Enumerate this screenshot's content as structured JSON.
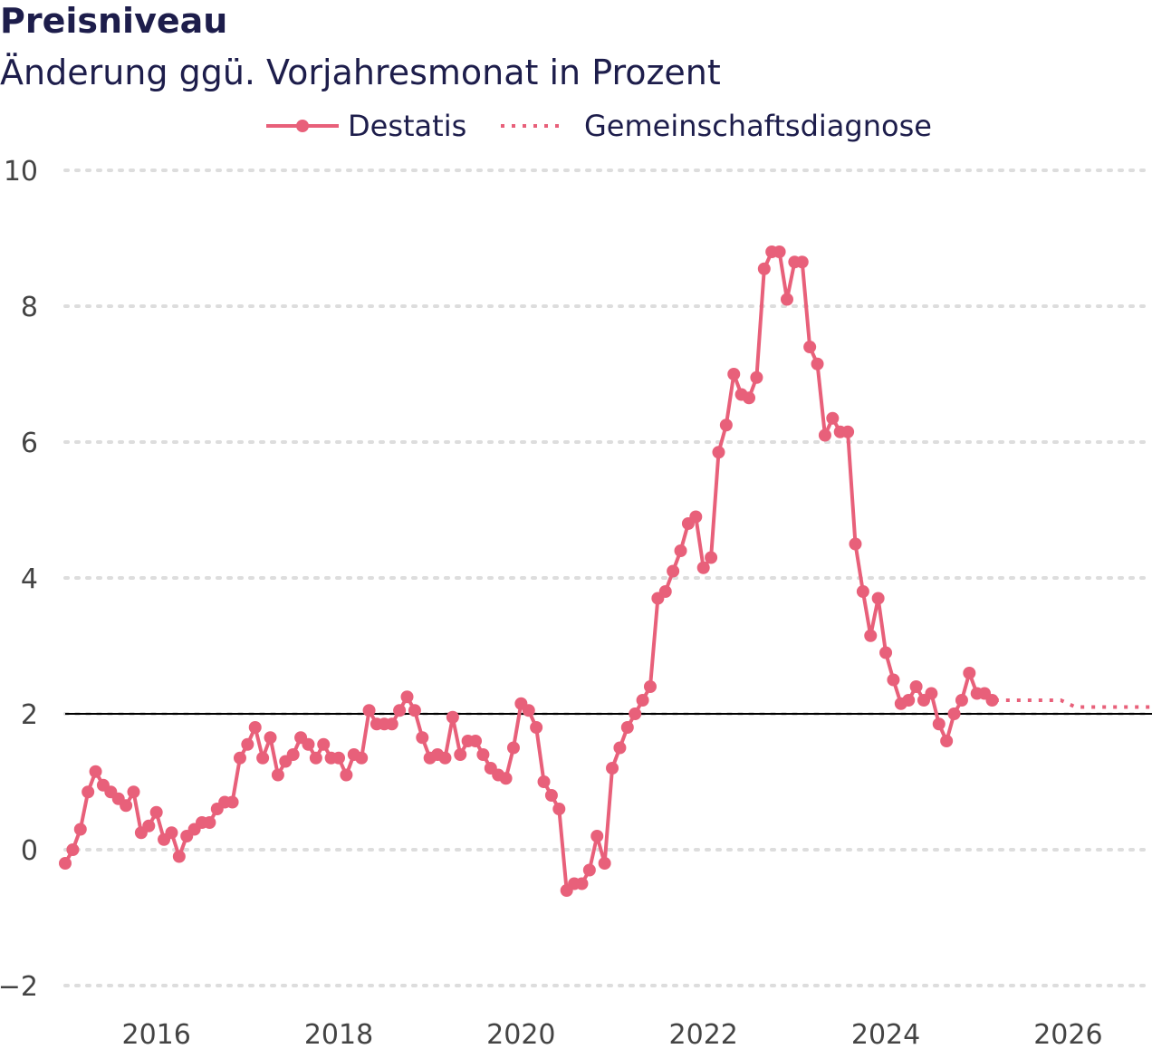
{
  "chart_data": {
    "type": "line",
    "title": "Preisniveau",
    "subtitle": "Änderung ggü. Vorjahresmonat in Prozent",
    "xlabel": "",
    "ylabel": "",
    "xlim": [
      2015.0,
      2026.92
    ],
    "ylim": [
      -2,
      10
    ],
    "y_ticks": [
      -2,
      0,
      2,
      4,
      6,
      8,
      10
    ],
    "y_tick_labels": [
      "−2",
      "0",
      "2",
      "4",
      "6",
      "8",
      "10"
    ],
    "x_ticks": [
      2016,
      2018,
      2020,
      2022,
      2024,
      2026
    ],
    "x_tick_labels": [
      "2016",
      "2018",
      "2020",
      "2022",
      "2024",
      "2026"
    ],
    "grid": "horizontal dotted",
    "reference_line": 2,
    "legend": {
      "position": "top",
      "entries": [
        "Destatis",
        "Gemeinschaftsdiagnose"
      ]
    },
    "colors": {
      "series": "#e8607a",
      "reference": "#000000",
      "grid": "#dddddd",
      "text": "#1d1d4b"
    },
    "series": [
      {
        "name": "Destatis",
        "style": "solid-markers",
        "start": "2015-01",
        "frequency": "monthly",
        "values": [
          -0.2,
          0,
          0.3,
          0.85,
          1.15,
          0.95,
          0.85,
          0.75,
          0.65,
          0.85,
          0.25,
          0.35,
          0.55,
          0.15,
          0.25,
          -0.1,
          0.2,
          0.3,
          0.4,
          0.4,
          0.6,
          0.7,
          0.7,
          1.35,
          1.55,
          1.8,
          1.35,
          1.65,
          1.1,
          1.3,
          1.4,
          1.65,
          1.55,
          1.35,
          1.55,
          1.35,
          1.35,
          1.1,
          1.4,
          1.35,
          2.05,
          1.85,
          1.85,
          1.85,
          2.05,
          2.25,
          2.05,
          1.65,
          1.35,
          1.4,
          1.35,
          1.95,
          1.4,
          1.6,
          1.6,
          1.4,
          1.2,
          1.1,
          1.05,
          1.5,
          2.15,
          2.05,
          1.8,
          1.0,
          0.8,
          0.6,
          -0.6,
          -0.5,
          -0.5,
          -0.3,
          0.2,
          -0.2,
          1.2,
          1.5,
          1.8,
          2.0,
          2.2,
          2.4,
          3.7,
          3.8,
          4.1,
          4.4,
          4.8,
          4.9,
          4.15,
          4.3,
          5.85,
          6.25,
          7.0,
          6.7,
          6.65,
          6.95,
          8.55,
          8.8,
          8.8,
          8.1,
          8.65,
          8.65,
          7.4,
          7.15,
          6.1,
          6.35,
          6.15,
          6.15,
          4.5,
          3.8,
          3.15,
          3.7,
          2.9,
          2.5,
          2.15,
          2.2,
          2.4,
          2.2,
          2.3,
          1.85,
          1.6,
          2.0,
          2.2,
          2.6,
          2.3,
          2.3,
          2.2
        ]
      },
      {
        "name": "Gemeinschaftsdiagnose",
        "style": "dotted",
        "points": [
          {
            "x": 2025.2,
            "y": 2.2
          },
          {
            "x": 2025.92,
            "y": 2.2
          },
          {
            "x": 2026.08,
            "y": 2.1
          },
          {
            "x": 2026.92,
            "y": 2.1
          }
        ]
      }
    ]
  }
}
